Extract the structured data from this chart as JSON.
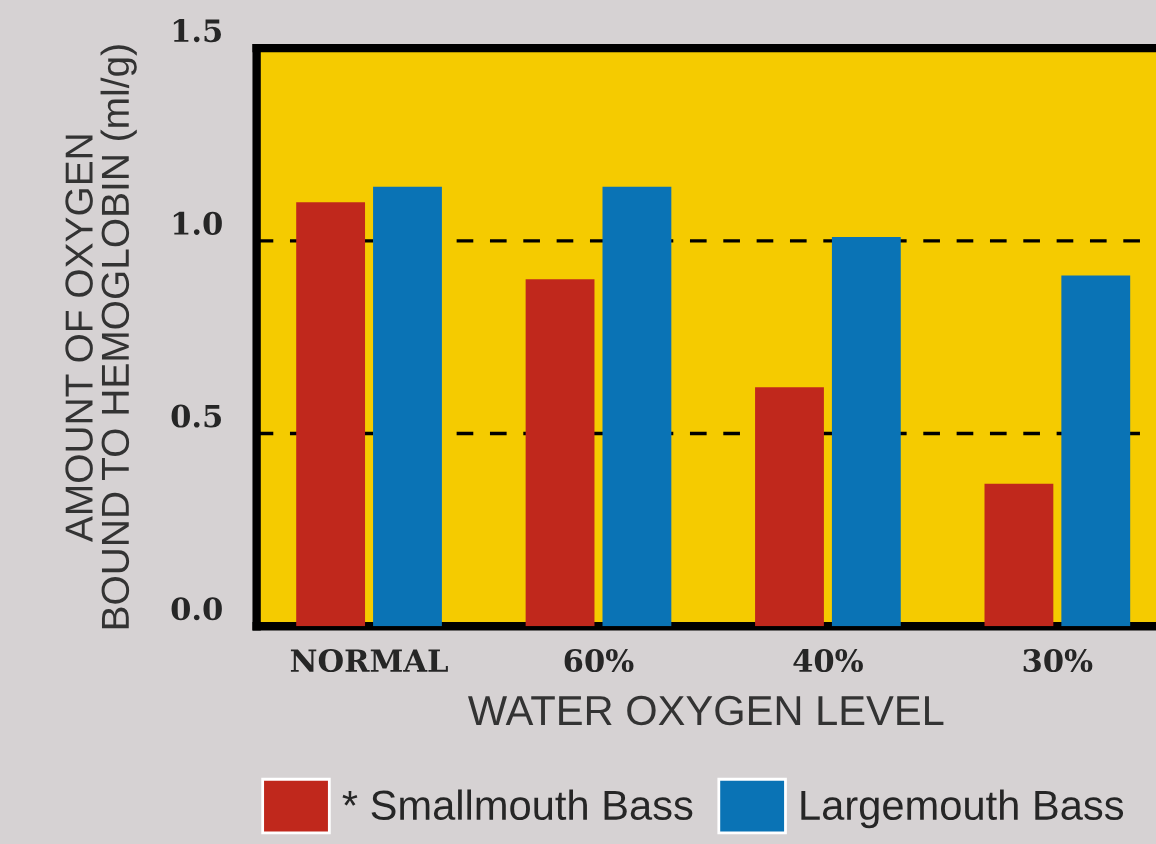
{
  "chart_data": {
    "type": "bar",
    "xlabel": "WATER OXYGEN LEVEL",
    "ylabel": "AMOUNT OF OXYGEN\nBOUND TO HEMOGLOBIN (ml/g)",
    "categories": [
      "NORMAL",
      "60%",
      "40%",
      "30%"
    ],
    "series": [
      {
        "name": "* Smallmouth Bass",
        "color": "#c0281c",
        "values": [
          1.1,
          0.9,
          0.62,
          0.37
        ]
      },
      {
        "name": "Largemouth Bass",
        "color": "#0a73b5",
        "values": [
          1.14,
          1.14,
          1.01,
          0.91
        ]
      }
    ],
    "ylim": [
      0,
      1.5
    ],
    "yticks": [
      {
        "value": 0,
        "label": "0.0"
      },
      {
        "value": 0.5,
        "label": "0.5"
      },
      {
        "value": 1,
        "label": "1.0"
      },
      {
        "value": 1.5,
        "label": "1.5"
      }
    ],
    "grid": "y",
    "line_style": "dashed",
    "legend": "bottom"
  }
}
